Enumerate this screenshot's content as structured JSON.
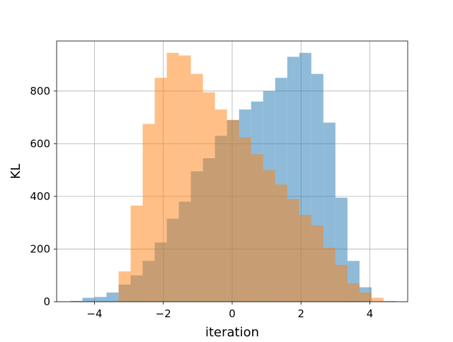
{
  "chart_data": {
    "type": "bar",
    "title": "",
    "xlabel": "iteration",
    "ylabel": "KL",
    "xlim": [
      -5.1,
      5.1
    ],
    "ylim": [
      0,
      990
    ],
    "xticks": [
      -4,
      -2,
      0,
      2,
      4
    ],
    "yticks": [
      0,
      200,
      400,
      600,
      800
    ],
    "xtick_labels": [
      "−4",
      "−2",
      "0",
      "2",
      "4"
    ],
    "ytick_labels": [
      "0",
      "200",
      "400",
      "600",
      "800"
    ],
    "grid": true,
    "colors": {
      "series_a": "#1f77b4",
      "series_b": "#ff7f0e",
      "grid": "#b0b0b0",
      "axes": "#000000"
    },
    "series": [
      {
        "bin_edges": [
          -4.7,
          -4.35,
          -4.0,
          -3.65,
          -3.3,
          -2.95,
          -2.6,
          -2.25,
          -1.9,
          -1.55,
          -1.2,
          -0.85,
          -0.5,
          -0.15,
          0.2,
          0.55,
          0.9,
          1.25,
          1.6,
          1.95,
          2.3,
          2.65,
          3.0,
          3.35,
          3.7,
          4.05
        ],
        "values": [
          3,
          15,
          18,
          35,
          65,
          100,
          155,
          225,
          315,
          380,
          495,
          545,
          630,
          690,
          730,
          760,
          800,
          850,
          930,
          945,
          865,
          680,
          395,
          155,
          55
        ],
        "opacity": 0.5,
        "color": "#1f77b4"
      },
      {
        "bin_edges": [
          -3.3,
          -2.95,
          -2.6,
          -2.25,
          -1.9,
          -1.55,
          -1.2,
          -0.85,
          -0.5,
          -0.15,
          0.2,
          0.55,
          0.9,
          1.25,
          1.6,
          1.95,
          2.3,
          2.65,
          3.0,
          3.35,
          3.7,
          4.05,
          4.4,
          4.75
        ],
        "values": [
          115,
          365,
          675,
          850,
          945,
          935,
          865,
          795,
          730,
          690,
          625,
          560,
          500,
          445,
          390,
          330,
          290,
          205,
          140,
          70,
          35,
          15,
          3
        ],
        "opacity": 0.5,
        "color": "#ff7f0e"
      }
    ]
  }
}
